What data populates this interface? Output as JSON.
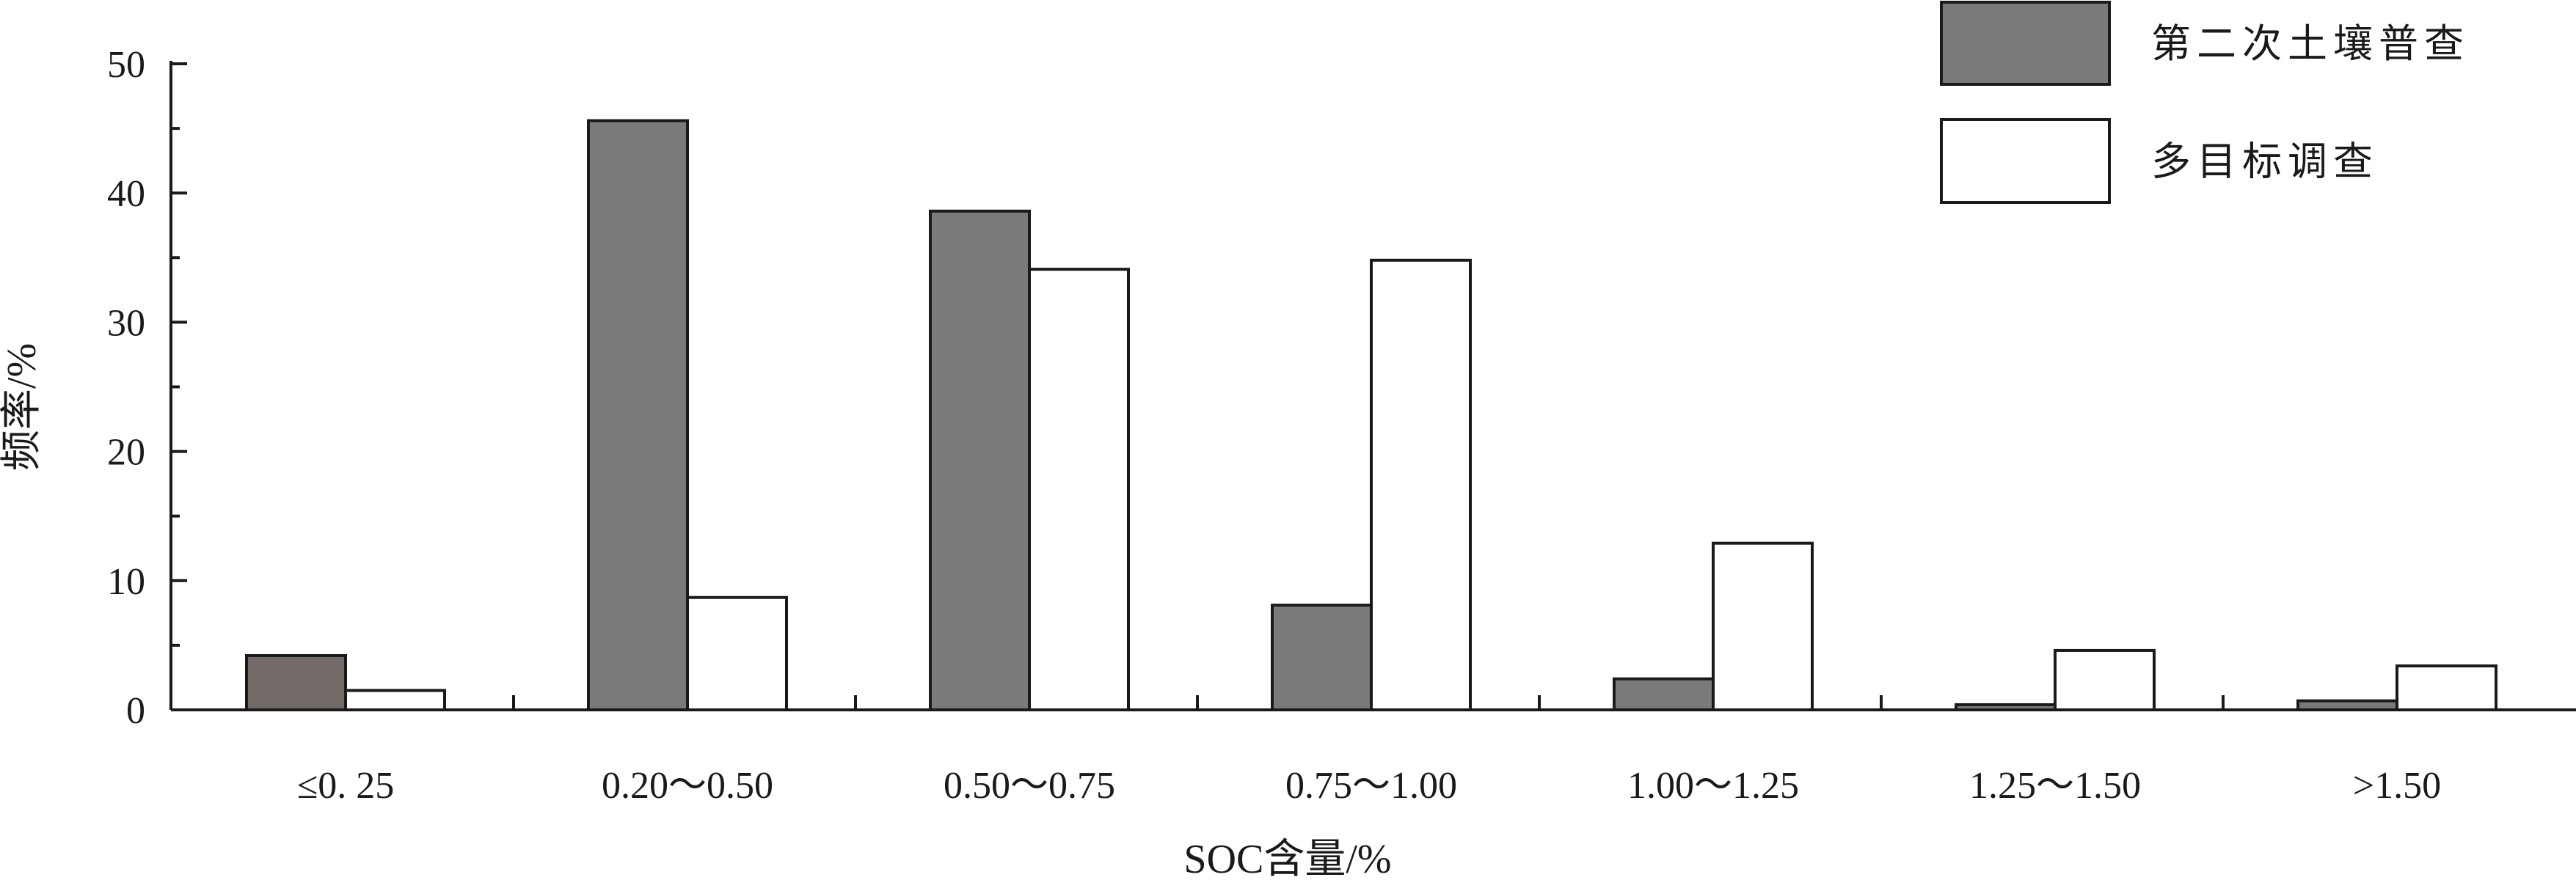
{
  "chart_data": {
    "type": "bar",
    "categories": [
      "≤0. 25",
      "0.20～0.50",
      "0.50～0.75",
      "0.75～1.00",
      "1.00～1.25",
      "1.25～1.50",
      ">1.50"
    ],
    "series": [
      {
        "name": "第二次土壤普查",
        "values": [
          4.2,
          45.6,
          38.6,
          8.1,
          2.4,
          0.4,
          0.7
        ],
        "color": "#7a7a7a",
        "first_bar_color": "#716a66"
      },
      {
        "name": "多目标调查",
        "values": [
          1.5,
          8.7,
          34.1,
          34.8,
          12.9,
          4.6,
          3.4
        ],
        "color": "#ffffff"
      }
    ],
    "xlabel": "SOC含量/%",
    "ylabel": "频率/%",
    "ylim": [
      0,
      50
    ],
    "yticks": [
      0,
      10,
      20,
      30,
      40,
      50
    ],
    "grid": false,
    "legend_position": "top-right"
  }
}
